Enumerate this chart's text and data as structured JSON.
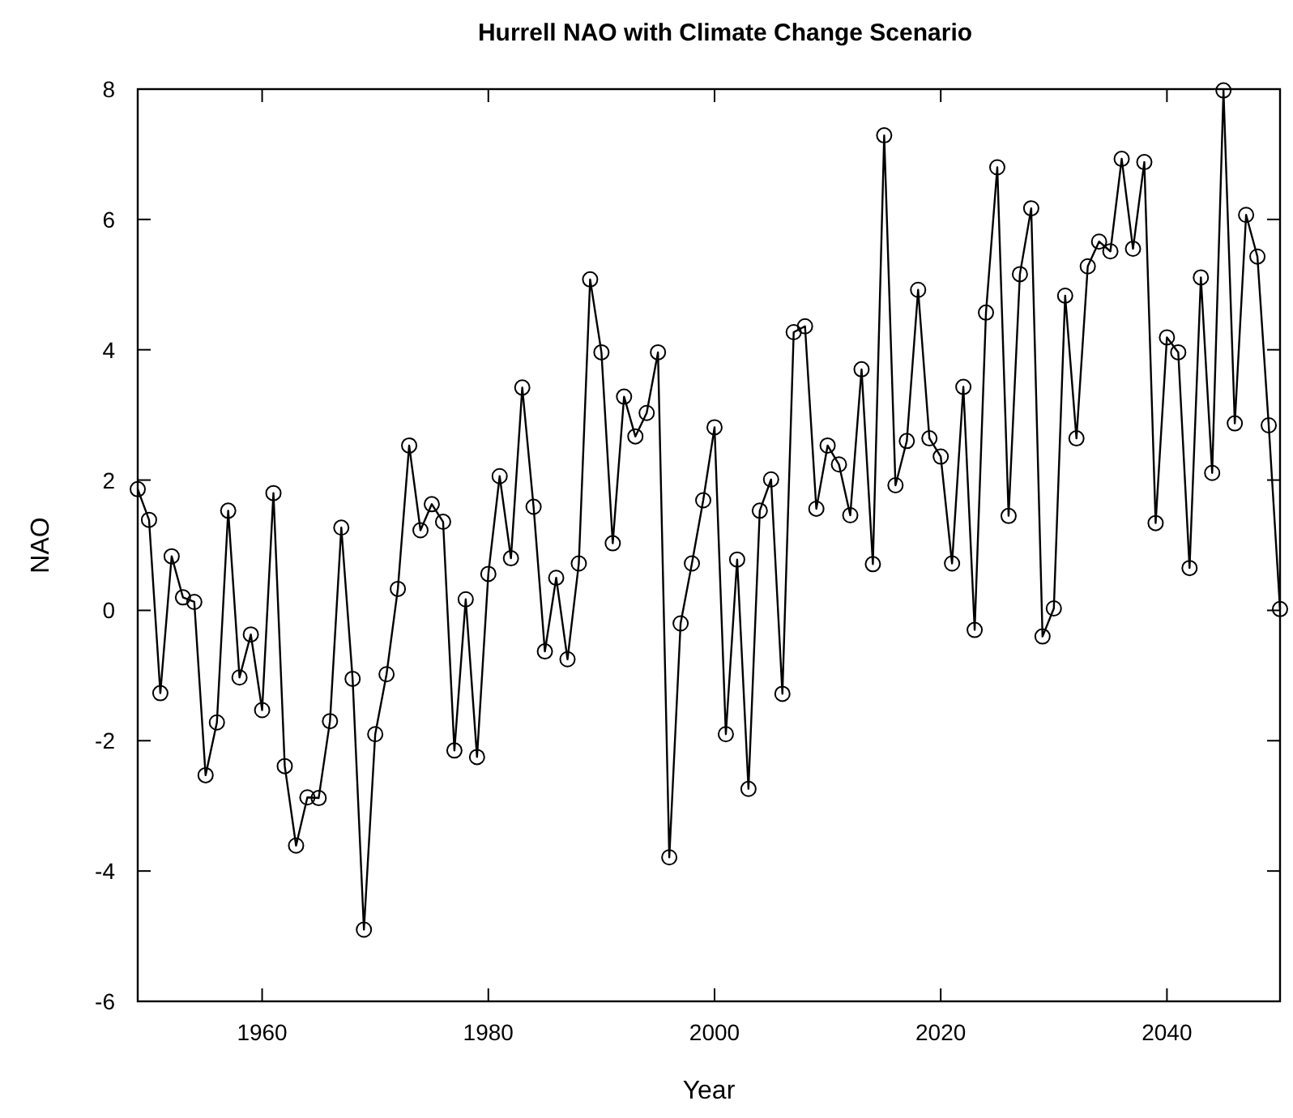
{
  "chart_data": {
    "type": "line",
    "title": "Hurrell NAO with Climate Change Scenario",
    "xlabel": "Year",
    "ylabel": "NAO",
    "x": [
      1949,
      1950,
      1951,
      1952,
      1953,
      1954,
      1955,
      1956,
      1957,
      1958,
      1959,
      1960,
      1961,
      1962,
      1963,
      1964,
      1965,
      1966,
      1967,
      1968,
      1969,
      1970,
      1971,
      1972,
      1973,
      1974,
      1975,
      1976,
      1977,
      1978,
      1979,
      1980,
      1981,
      1982,
      1983,
      1984,
      1985,
      1986,
      1987,
      1988,
      1989,
      1990,
      1991,
      1992,
      1993,
      1994,
      1995,
      1996,
      1997,
      1998,
      1999,
      2000,
      2001,
      2002,
      2003,
      2004,
      2005,
      2006,
      2007,
      2008,
      2009,
      2010,
      2011,
      2012,
      2013,
      2014,
      2015,
      2016,
      2017,
      2018,
      2019,
      2020,
      2021,
      2022,
      2023,
      2024,
      2025,
      2026,
      2027,
      2028,
      2029,
      2030,
      2031,
      2032,
      2033,
      2034,
      2035,
      2036,
      2037,
      2038,
      2039,
      2040,
      2041,
      2042,
      2043,
      2044,
      2045,
      2046,
      2047,
      2048,
      2049,
      2050
    ],
    "series": [
      {
        "color": "#000000",
        "values": [
          1.86,
          1.39,
          -1.27,
          0.83,
          0.2,
          0.13,
          -2.53,
          -1.72,
          1.53,
          -1.03,
          -0.37,
          -1.53,
          1.8,
          -2.39,
          -3.61,
          -2.87,
          -2.88,
          -1.7,
          1.27,
          -1.05,
          -4.9,
          -1.9,
          -0.98,
          0.33,
          2.53,
          1.23,
          1.63,
          1.36,
          -2.15,
          0.17,
          -2.25,
          0.56,
          2.06,
          0.8,
          3.42,
          1.59,
          -0.63,
          0.5,
          -0.75,
          0.72,
          5.08,
          3.96,
          1.03,
          3.28,
          2.67,
          3.03,
          3.96,
          -3.79,
          -0.2,
          0.72,
          1.69,
          2.81,
          -1.9,
          0.78,
          -2.74,
          1.53,
          2.01,
          -1.28,
          4.27,
          4.36,
          1.56,
          2.53,
          2.24,
          1.46,
          3.7,
          0.71,
          7.29,
          1.92,
          2.6,
          4.92,
          2.64,
          2.36,
          0.72,
          3.43,
          -0.3,
          4.57,
          6.8,
          1.45,
          5.16,
          6.17,
          -0.4,
          0.03,
          4.83,
          2.64,
          5.28,
          5.66,
          5.51,
          6.93,
          5.55,
          6.88,
          1.34,
          4.19,
          3.96,
          0.65,
          5.11,
          2.11,
          7.98,
          2.87,
          6.07,
          5.43,
          2.84,
          0.02
        ]
      }
    ],
    "xlim": [
      1949,
      2050
    ],
    "xticks": [
      1960,
      1980,
      2000,
      2020,
      2040
    ],
    "ylim": [
      -6,
      8
    ],
    "yticks": [
      -6,
      -4,
      -2,
      0,
      2,
      4,
      6,
      8
    ],
    "grid": false,
    "marker": "circle",
    "line_style": "solid"
  }
}
